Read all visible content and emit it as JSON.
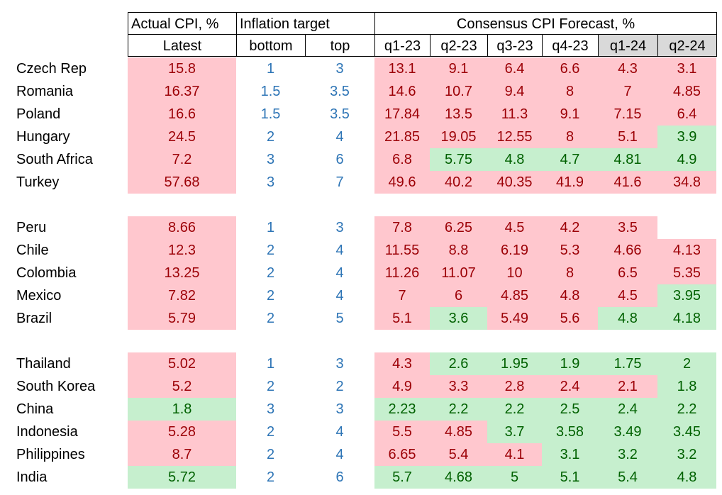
{
  "header": {
    "actual": "Actual CPI, %",
    "target": "Inflation target",
    "forecast": "Consensus CPI Forecast, %",
    "latest": "Latest",
    "bottom": "bottom",
    "top": "top",
    "quarters": [
      "q1-23",
      "q2-23",
      "q3-23",
      "q4-23",
      "q1-24",
      "q2-24"
    ]
  },
  "pink": "#ffc7ce",
  "green": "#c6efce",
  "groups": [
    {
      "rows": [
        {
          "country": "Czech Rep",
          "actual": "15.8",
          "bottom": "1",
          "top": "3",
          "forecasts": [
            "13.1",
            "9.1",
            "6.4",
            "6.6",
            "4.3",
            "3.1"
          ],
          "fills": [
            "#ffc7ce",
            "#ffc7ce",
            "#ffc7ce",
            "#ffc7ce",
            "#ffc7ce",
            "#ffc7ce",
            "#ffc7ce"
          ]
        },
        {
          "country": "Romania",
          "actual": "16.37",
          "bottom": "1.5",
          "top": "3.5",
          "forecasts": [
            "14.6",
            "10.7",
            "9.4",
            "8",
            "7",
            "4.85"
          ],
          "fills": [
            "#ffc7ce",
            "#ffc7ce",
            "#ffc7ce",
            "#ffc7ce",
            "#ffc7ce",
            "#ffc7ce",
            "#ffc7ce"
          ]
        },
        {
          "country": "Poland",
          "actual": "16.6",
          "bottom": "1.5",
          "top": "3.5",
          "forecasts": [
            "17.84",
            "13.5",
            "11.3",
            "9.1",
            "7.15",
            "6.4"
          ],
          "fills": [
            "#ffc7ce",
            "#ffc7ce",
            "#ffc7ce",
            "#ffc7ce",
            "#ffc7ce",
            "#ffc7ce",
            "#ffc7ce"
          ]
        },
        {
          "country": "Hungary",
          "actual": "24.5",
          "bottom": "2",
          "top": "4",
          "forecasts": [
            "21.85",
            "19.05",
            "12.55",
            "8",
            "5.1",
            "3.9"
          ],
          "fills": [
            "#ffc7ce",
            "#ffc7ce",
            "#ffc7ce",
            "#ffc7ce",
            "#ffc7ce",
            "#ffc7ce",
            "#c6efce"
          ]
        },
        {
          "country": "South Africa",
          "actual": "7.2",
          "bottom": "3",
          "top": "6",
          "forecasts": [
            "6.8",
            "5.75",
            "4.8",
            "4.7",
            "4.81",
            "4.9"
          ],
          "fills": [
            "#ffc7ce",
            "#ffc7ce",
            "#c6efce",
            "#c6efce",
            "#c6efce",
            "#c6efce",
            "#c6efce"
          ]
        },
        {
          "country": "Turkey",
          "actual": "57.68",
          "bottom": "3",
          "top": "7",
          "forecasts": [
            "49.6",
            "40.2",
            "40.35",
            "41.9",
            "41.6",
            "34.8"
          ],
          "fills": [
            "#ffc7ce",
            "#ffc7ce",
            "#ffc7ce",
            "#ffc7ce",
            "#ffc7ce",
            "#ffc7ce",
            "#ffc7ce"
          ]
        }
      ]
    },
    {
      "rows": [
        {
          "country": "Peru",
          "actual": "8.66",
          "bottom": "1",
          "top": "3",
          "forecasts": [
            "7.8",
            "6.25",
            "4.5",
            "4.2",
            "3.5",
            null
          ],
          "fills": [
            "#ffc7ce",
            "#ffc7ce",
            "#ffc7ce",
            "#ffc7ce",
            "#ffc7ce",
            "#ffc7ce",
            null
          ]
        },
        {
          "country": "Chile",
          "actual": "12.3",
          "bottom": "2",
          "top": "4",
          "forecasts": [
            "11.55",
            "8.8",
            "6.19",
            "5.3",
            "4.66",
            "4.13"
          ],
          "fills": [
            "#ffc7ce",
            "#ffc7ce",
            "#ffc7ce",
            "#ffc7ce",
            "#ffc7ce",
            "#ffc7ce",
            "#ffc7ce"
          ]
        },
        {
          "country": "Colombia",
          "actual": "13.25",
          "bottom": "2",
          "top": "4",
          "forecasts": [
            "11.26",
            "11.07",
            "10",
            "8",
            "6.5",
            "5.35"
          ],
          "fills": [
            "#ffc7ce",
            "#ffc7ce",
            "#ffc7ce",
            "#ffc7ce",
            "#ffc7ce",
            "#ffc7ce",
            "#ffc7ce"
          ]
        },
        {
          "country": "Mexico",
          "actual": "7.82",
          "bottom": "2",
          "top": "4",
          "forecasts": [
            "7",
            "6",
            "4.85",
            "4.8",
            "4.5",
            "3.95"
          ],
          "fills": [
            "#ffc7ce",
            "#ffc7ce",
            "#ffc7ce",
            "#ffc7ce",
            "#ffc7ce",
            "#ffc7ce",
            "#c6efce"
          ]
        },
        {
          "country": "Brazil",
          "actual": "5.79",
          "bottom": "2",
          "top": "5",
          "forecasts": [
            "5.1",
            "3.6",
            "5.49",
            "5.6",
            "4.8",
            "4.18"
          ],
          "fills": [
            "#ffc7ce",
            "#ffc7ce",
            "#c6efce",
            "#ffc7ce",
            "#ffc7ce",
            "#c6efce",
            "#c6efce"
          ]
        }
      ]
    },
    {
      "rows": [
        {
          "country": "Thailand",
          "actual": "5.02",
          "bottom": "1",
          "top": "3",
          "forecasts": [
            "4.3",
            "2.6",
            "1.95",
            "1.9",
            "1.75",
            "2"
          ],
          "fills": [
            "#ffc7ce",
            "#ffc7ce",
            "#c6efce",
            "#c6efce",
            "#c6efce",
            "#c6efce",
            "#c6efce"
          ]
        },
        {
          "country": "South Korea",
          "actual": "5.2",
          "bottom": "2",
          "top": "2",
          "forecasts": [
            "4.9",
            "3.3",
            "2.8",
            "2.4",
            "2.1",
            "1.8"
          ],
          "fills": [
            "#ffc7ce",
            "#ffc7ce",
            "#ffc7ce",
            "#ffc7ce",
            "#ffc7ce",
            "#ffc7ce",
            "#c6efce"
          ]
        },
        {
          "country": "China",
          "actual": "1.8",
          "bottom": "3",
          "top": "3",
          "forecasts": [
            "2.23",
            "2.2",
            "2.2",
            "2.5",
            "2.4",
            "2.2"
          ],
          "fills": [
            "#c6efce",
            "#c6efce",
            "#c6efce",
            "#c6efce",
            "#c6efce",
            "#c6efce",
            "#c6efce"
          ]
        },
        {
          "country": "Indonesia",
          "actual": "5.28",
          "bottom": "2",
          "top": "4",
          "forecasts": [
            "5.5",
            "4.85",
            "3.7",
            "3.58",
            "3.49",
            "3.45"
          ],
          "fills": [
            "#ffc7ce",
            "#ffc7ce",
            "#ffc7ce",
            "#c6efce",
            "#c6efce",
            "#c6efce",
            "#c6efce"
          ]
        },
        {
          "country": "Philippines",
          "actual": "8.7",
          "bottom": "2",
          "top": "4",
          "forecasts": [
            "6.65",
            "5.4",
            "4.1",
            "3.1",
            "3.2",
            "3.2"
          ],
          "fills": [
            "#ffc7ce",
            "#ffc7ce",
            "#ffc7ce",
            "#ffc7ce",
            "#c6efce",
            "#c6efce",
            "#c6efce"
          ]
        },
        {
          "country": "India",
          "actual": "5.72",
          "bottom": "2",
          "top": "6",
          "forecasts": [
            "5.7",
            "4.68",
            "5",
            "5.1",
            "5.4",
            "4.8"
          ],
          "fills": [
            "#c6efce",
            "#c6efce",
            "#c6efce",
            "#c6efce",
            "#c6efce",
            "#c6efce",
            "#c6efce"
          ]
        }
      ]
    }
  ]
}
